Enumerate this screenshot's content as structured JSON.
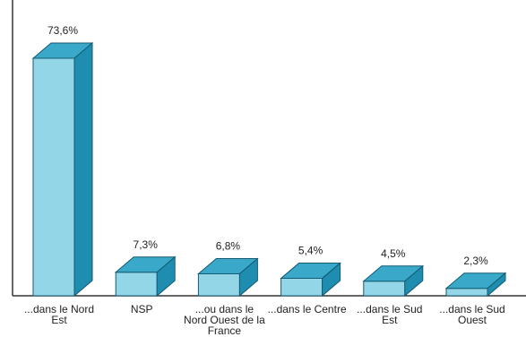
{
  "chart_data": {
    "type": "bar3d",
    "categories": [
      "...dans le Nord Est",
      "NSP",
      "...ou dans le Nord Ouest de la France",
      "...dans le Centre",
      "...dans le Sud Est",
      "...dans le Sud Ouest"
    ],
    "values": [
      73.6,
      7.3,
      6.8,
      5.4,
      4.5,
      2.3
    ],
    "value_labels": [
      "73,6%",
      "7,3%",
      "6,8%",
      "5,4%",
      "4,5%",
      "2,3%"
    ],
    "colors": {
      "front": "#93d6e8",
      "top": "#3aa9c9",
      "side": "#1e8db0"
    }
  }
}
